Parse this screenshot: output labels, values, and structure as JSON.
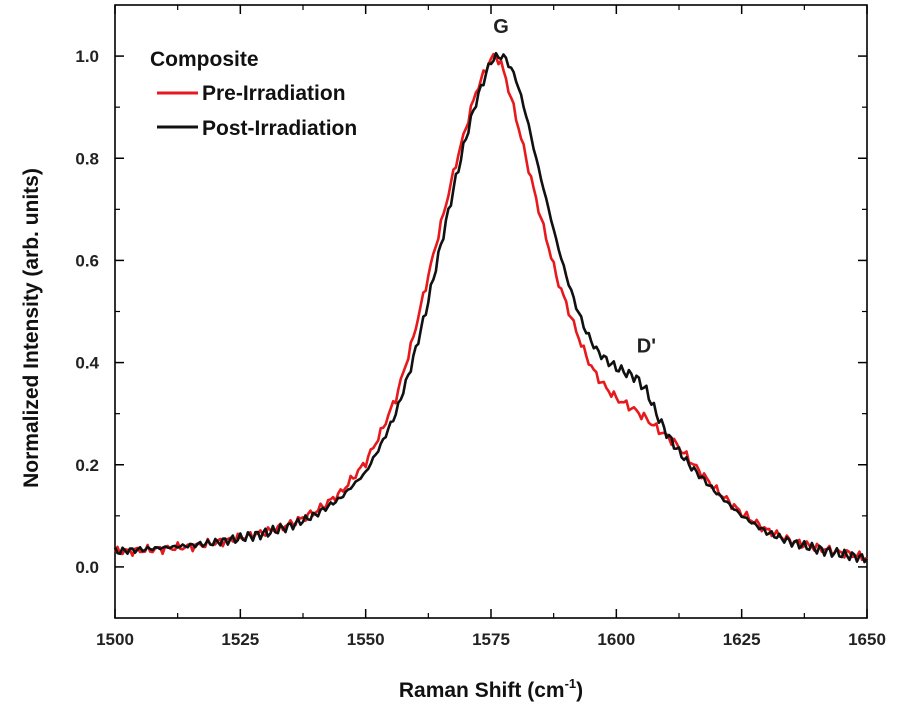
{
  "chart_data": {
    "type": "line",
    "xlabel": "Raman Shift (cm",
    "xlabel_sup": "-1",
    "xlabel_end": ")",
    "ylabel": "Normalized Intensity (arb. units)",
    "xlim": [
      1500,
      1650
    ],
    "ylim": [
      -0.1,
      1.1
    ],
    "x_ticks": [
      1500,
      1525,
      1550,
      1575,
      1600,
      1625,
      1650
    ],
    "x_tick_labels": [
      "1500",
      "1525",
      "1550",
      "1575",
      "1600",
      "1625",
      "1650"
    ],
    "y_ticks": [
      0.0,
      0.2,
      0.4,
      0.6,
      0.8,
      1.0
    ],
    "y_tick_labels": [
      "0.0",
      "0.2",
      "0.4",
      "0.6",
      "0.8",
      "1.0"
    ],
    "grid": false,
    "legend": {
      "title": "Composite",
      "position": "top-left"
    },
    "annotations": [
      {
        "text": "G",
        "x": 1577,
        "y": 1.045
      },
      {
        "text": "D'",
        "x": 1606,
        "y": 0.42
      }
    ],
    "series": [
      {
        "name": "Pre-Irradiation",
        "color": "#e8191c",
        "x": [
          1500,
          1505,
          1510,
          1515,
          1520,
          1525,
          1530,
          1535,
          1540,
          1545,
          1550,
          1553,
          1556,
          1559,
          1562,
          1565,
          1568,
          1570,
          1572,
          1574,
          1575,
          1576,
          1577,
          1578,
          1580,
          1582,
          1584,
          1586,
          1588,
          1590,
          1592,
          1594,
          1596,
          1598,
          1600,
          1602,
          1604,
          1606,
          1608,
          1610,
          1612,
          1615,
          1620,
          1625,
          1630,
          1635,
          1640,
          1645,
          1650
        ],
        "y": [
          0.03,
          0.032,
          0.036,
          0.04,
          0.047,
          0.057,
          0.068,
          0.084,
          0.108,
          0.145,
          0.205,
          0.262,
          0.33,
          0.43,
          0.55,
          0.67,
          0.79,
          0.86,
          0.93,
          0.975,
          0.995,
          1.0,
          0.985,
          0.955,
          0.88,
          0.8,
          0.72,
          0.645,
          0.57,
          0.515,
          0.462,
          0.412,
          0.375,
          0.35,
          0.33,
          0.318,
          0.305,
          0.29,
          0.272,
          0.256,
          0.24,
          0.205,
          0.15,
          0.105,
          0.072,
          0.05,
          0.038,
          0.028,
          0.018
        ]
      },
      {
        "name": "Post-Irradiation",
        "color": "#111111",
        "x": [
          1500,
          1505,
          1510,
          1515,
          1520,
          1525,
          1530,
          1535,
          1540,
          1545,
          1550,
          1553,
          1556,
          1559,
          1562,
          1565,
          1568,
          1570,
          1572,
          1574,
          1575,
          1576,
          1577,
          1578,
          1580,
          1582,
          1584,
          1586,
          1588,
          1590,
          1592,
          1594,
          1596,
          1598,
          1600,
          1602,
          1604,
          1606,
          1608,
          1610,
          1612,
          1615,
          1620,
          1625,
          1630,
          1635,
          1640,
          1645,
          1650
        ],
        "y": [
          0.03,
          0.034,
          0.038,
          0.042,
          0.048,
          0.056,
          0.066,
          0.08,
          0.102,
          0.135,
          0.185,
          0.238,
          0.3,
          0.39,
          0.5,
          0.63,
          0.76,
          0.84,
          0.91,
          0.965,
          0.99,
          0.998,
          1.0,
          0.995,
          0.955,
          0.885,
          0.8,
          0.72,
          0.64,
          0.57,
          0.51,
          0.46,
          0.425,
          0.405,
          0.39,
          0.38,
          0.37,
          0.345,
          0.3,
          0.262,
          0.232,
          0.195,
          0.145,
          0.1,
          0.068,
          0.048,
          0.035,
          0.025,
          0.016
        ]
      }
    ]
  }
}
